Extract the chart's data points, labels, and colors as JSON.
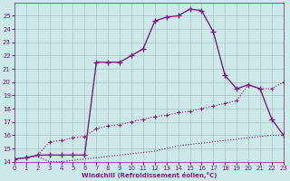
{
  "xlabel": "Windchill (Refroidissement éolien,°C)",
  "xlim": [
    0,
    23
  ],
  "ylim": [
    14,
    26
  ],
  "yticks": [
    14,
    15,
    16,
    17,
    18,
    19,
    20,
    21,
    22,
    23,
    24,
    25
  ],
  "xticks": [
    0,
    1,
    2,
    3,
    4,
    5,
    6,
    7,
    8,
    9,
    10,
    11,
    12,
    13,
    14,
    15,
    16,
    17,
    18,
    19,
    20,
    21,
    22,
    23
  ],
  "background_color": "#cde8e8",
  "grid_color": "#9bbcbc",
  "line_color": "#7b2082",
  "curve_x": [
    0,
    1,
    2,
    3,
    4,
    5,
    6,
    7,
    8,
    9,
    10,
    11,
    12,
    13,
    14,
    15,
    16,
    17,
    18,
    19,
    20,
    21,
    22,
    23
  ],
  "curve_y": [
    14.2,
    14.3,
    14.5,
    14.5,
    14.5,
    14.5,
    14.5,
    21.5,
    21.5,
    21.5,
    22.0,
    22.5,
    24.6,
    24.9,
    25.0,
    25.5,
    25.4,
    23.8,
    20.5,
    19.5,
    19.8,
    19.5,
    17.2,
    16.0
  ],
  "lin1_x": [
    0,
    1,
    2,
    3,
    4,
    5,
    6,
    7,
    8,
    9,
    10,
    11,
    12,
    13,
    14,
    15,
    16,
    17,
    18,
    19,
    20,
    21,
    22,
    23
  ],
  "lin1_y": [
    14.2,
    14.3,
    14.5,
    15.5,
    15.6,
    15.8,
    15.9,
    16.5,
    16.7,
    16.8,
    17.0,
    17.2,
    17.4,
    17.5,
    17.7,
    17.8,
    18.0,
    18.2,
    18.4,
    18.6,
    19.8,
    19.5,
    19.5,
    20.0
  ],
  "lin2_x": [
    0,
    1,
    2,
    3,
    4,
    5,
    6,
    7,
    8,
    9,
    10,
    11,
    12,
    13,
    14,
    15,
    16,
    17,
    18,
    19,
    20,
    21,
    22,
    23
  ],
  "lin2_y": [
    14.2,
    14.3,
    14.4,
    14.0,
    14.0,
    14.1,
    14.2,
    14.3,
    14.4,
    14.5,
    14.6,
    14.7,
    14.8,
    15.0,
    15.2,
    15.3,
    15.4,
    15.5,
    15.6,
    15.7,
    15.8,
    15.9,
    16.0,
    16.0
  ]
}
